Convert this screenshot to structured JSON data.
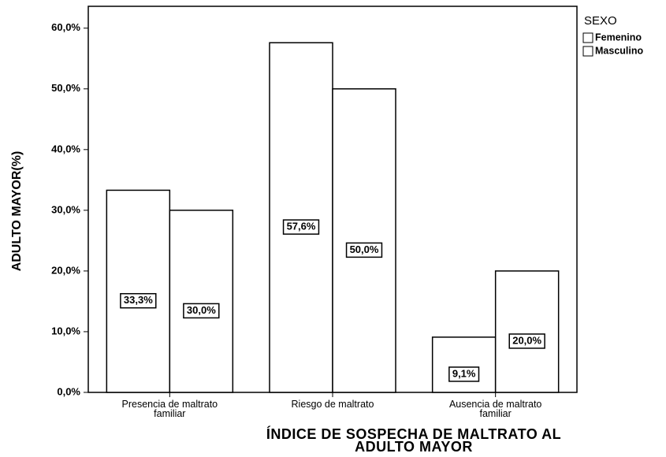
{
  "chart_data": {
    "type": "bar",
    "xlabel": "ÍNDICE DE SOSPECHA DE MALTRATO AL ADULTO MAYOR",
    "ylabel": "ADULTO MAYOR(%)",
    "categories": [
      "Presencia de maltrato familiar",
      "Riesgo de maltrato",
      "Ausencia de maltrato familiar"
    ],
    "legend_title": "SEXO",
    "legend": "right",
    "series": [
      {
        "name": "Femenino",
        "color": "#ffffff",
        "values": [
          33.3,
          57.6,
          9.1
        ],
        "value_labels": [
          "33,3%",
          "57,6%",
          "9,1%"
        ]
      },
      {
        "name": "Masculino",
        "color": "#ffffff",
        "values": [
          30.0,
          50.0,
          20.0
        ],
        "value_labels": [
          "30,0%",
          "50,0%",
          "20,0%"
        ]
      }
    ],
    "ylim": [
      0,
      63.6
    ],
    "yticks": [
      {
        "value": 0,
        "label": "0,0%"
      },
      {
        "value": 10,
        "label": "10,0%"
      },
      {
        "value": 20,
        "label": "20,0%"
      },
      {
        "value": 30,
        "label": "30,0%"
      },
      {
        "value": 40,
        "label": "40,0%"
      },
      {
        "value": 50,
        "label": "50,0%"
      },
      {
        "value": 60,
        "label": "60,0%"
      }
    ]
  }
}
